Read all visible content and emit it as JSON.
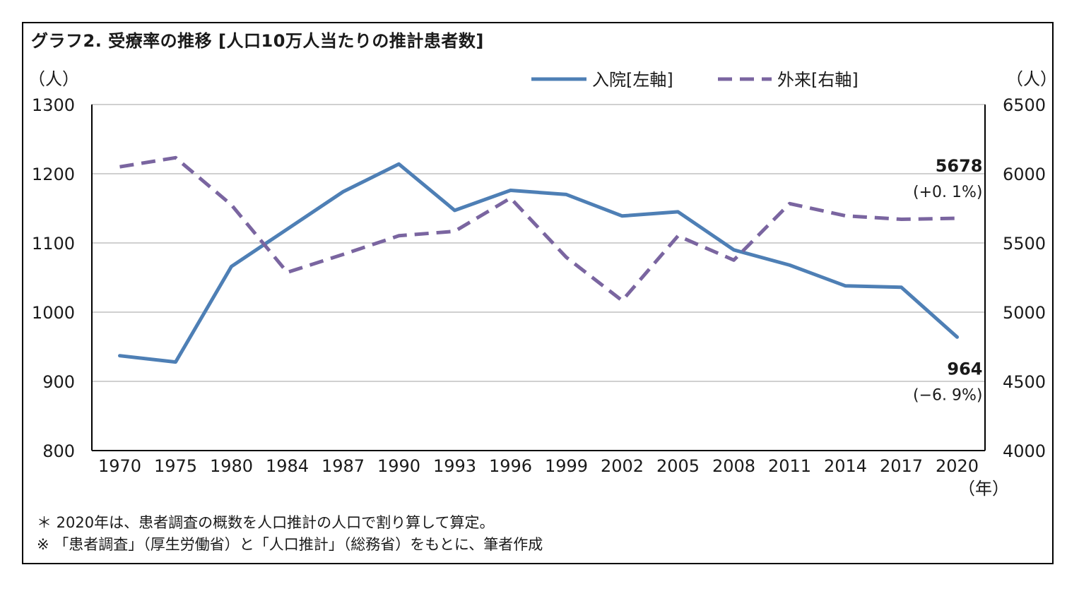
{
  "title": "グラフ2.  受療率の推移 [人口10万人当たりの推計患者数]",
  "notes": [
    "＊  2020年は、患者調査の概数を人口推計の人口で割り算して算定。",
    "※ 「患者調査」（厚生労働省）と「人口推計」（総務省）をもとに、筆者作成"
  ],
  "chart_data": {
    "type": "line",
    "categories": [
      "1970",
      "1975",
      "1980",
      "1984",
      "1987",
      "1990",
      "1993",
      "1996",
      "1999",
      "2002",
      "2005",
      "2008",
      "2011",
      "2014",
      "2017",
      "2020"
    ],
    "x_unit": "（年）",
    "y_left": {
      "unit": "（人）",
      "ylim": [
        800,
        1300
      ],
      "ticks": [
        "800",
        "900",
        "1000",
        "1100",
        "1200",
        "1300"
      ]
    },
    "y_right": {
      "unit": "（人）",
      "ylim": [
        4000,
        6500
      ],
      "ticks": [
        "4000",
        "4500",
        "5000",
        "5500",
        "6000",
        "6500"
      ]
    },
    "grid": true,
    "legend": "top-right",
    "series": [
      {
        "name": "入院[左軸]",
        "axis": "left",
        "style": "solid",
        "color": "#4e7fb5",
        "values": [
          937,
          928,
          1066,
          1120,
          1174,
          1214,
          1147,
          1176,
          1170,
          1139,
          1145,
          1090,
          1068,
          1038,
          1036,
          964
        ]
      },
      {
        "name": "外来[右軸]",
        "axis": "right",
        "style": "dashed",
        "color": "#7a65a0",
        "values": [
          6050,
          6116,
          5775,
          5288,
          5417,
          5552,
          5584,
          5824,
          5396,
          5083,
          5551,
          5376,
          5784,
          5696,
          5671,
          5678
        ]
      }
    ],
    "annotations": [
      {
        "series": 1,
        "index": 15,
        "lines": [
          "5678",
          "(+0. 1%)"
        ]
      },
      {
        "series": 0,
        "index": 15,
        "lines": [
          "964",
          "(−6. 9%)"
        ]
      }
    ]
  }
}
